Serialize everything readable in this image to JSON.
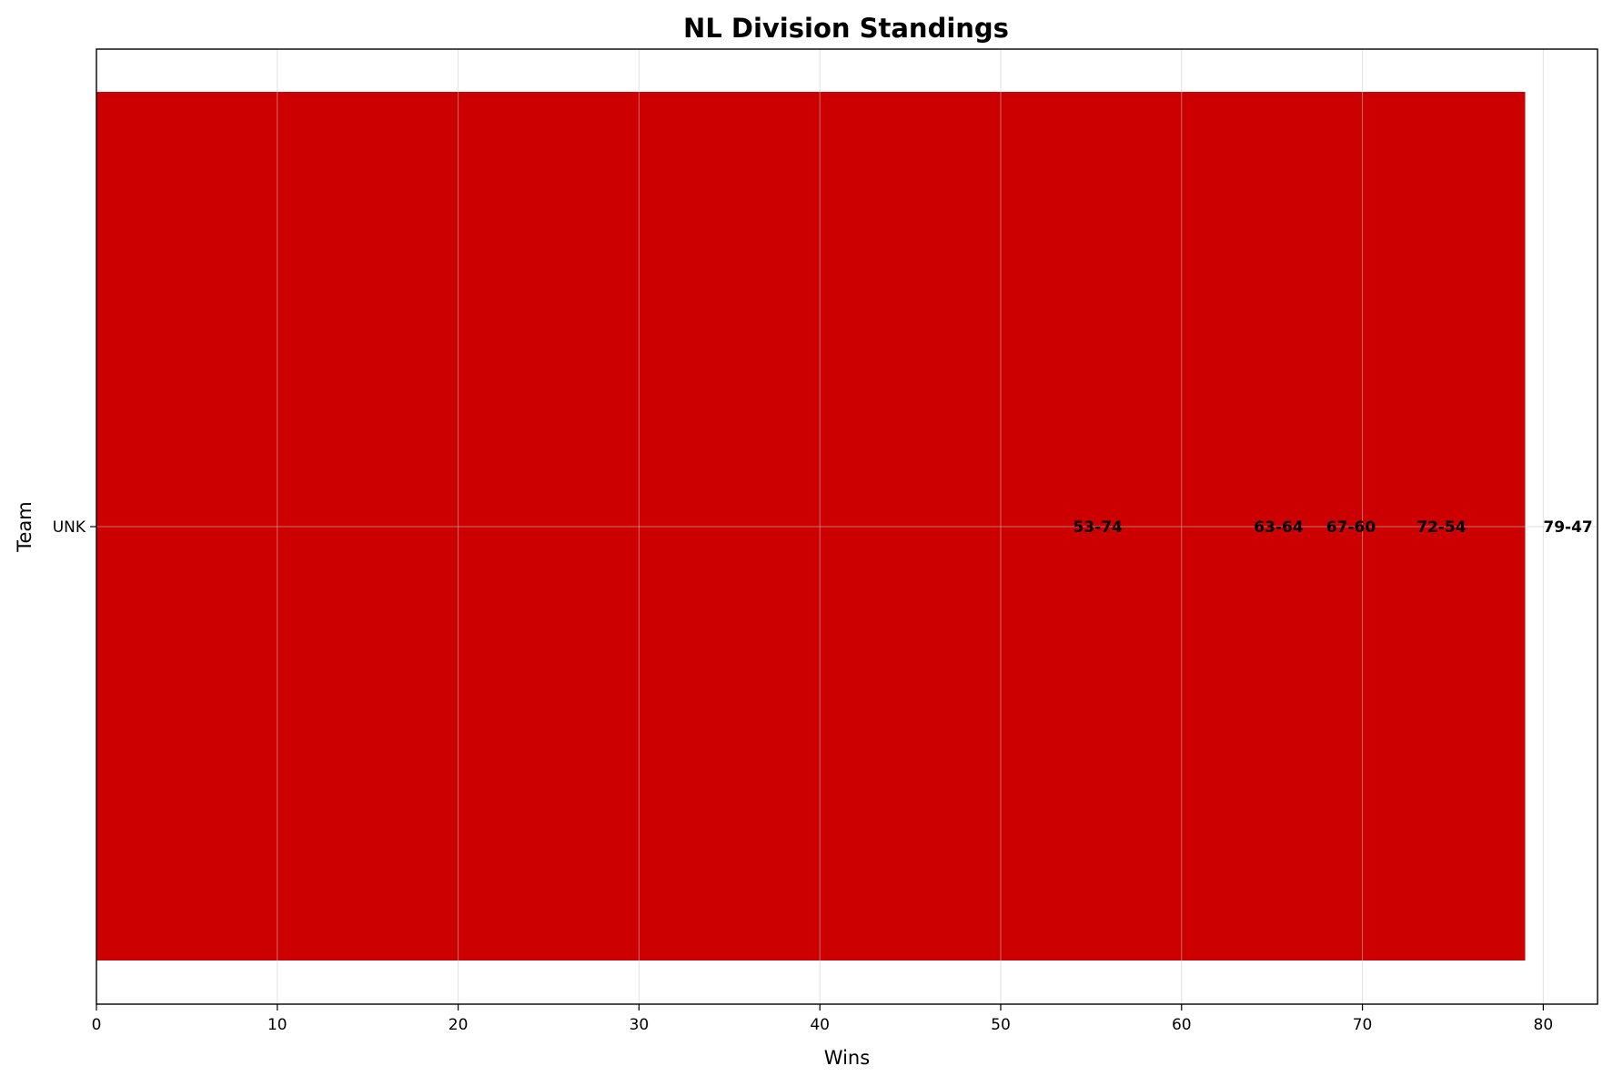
{
  "chart_data": {
    "type": "bar",
    "orientation": "horizontal",
    "title": "NL Division Standings",
    "xlabel": "Wins",
    "ylabel": "Team",
    "categories": [
      "UNK",
      "UNK",
      "UNK",
      "UNK",
      "UNK"
    ],
    "wins": [
      53,
      63,
      67,
      72,
      79
    ],
    "losses": [
      74,
      64,
      60,
      54,
      47
    ],
    "data_labels": [
      "53-74",
      "63-64",
      "67-60",
      "72-54",
      "79-47"
    ],
    "y_tick_labels": [
      "UNK"
    ],
    "xlim": [
      0,
      83
    ],
    "x_ticks": [
      0,
      10,
      20,
      30,
      40,
      50,
      60,
      70,
      80
    ],
    "grid": true,
    "bar_color": "#cc0000"
  }
}
